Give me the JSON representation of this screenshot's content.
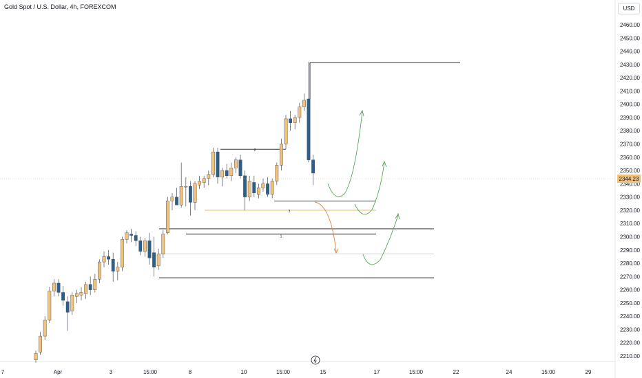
{
  "header": {
    "title": "Gold Spot / U.S. Dollar, 4h, FOREXCOM",
    "currency": "USD"
  },
  "chart_data": {
    "type": "candlestick",
    "symbol": "Gold Spot / U.S. Dollar",
    "interval": "4h",
    "exchange": "FOREXCOM",
    "currency": "USD",
    "last_price": "2344.23",
    "ylim": [
      2205,
      2470
    ],
    "y_ticks": [
      2210,
      2220,
      2230,
      2240,
      2250,
      2260,
      2270,
      2280,
      2290,
      2300,
      2310,
      2320,
      2330,
      2340,
      2350,
      2360,
      2370,
      2380,
      2390,
      2400,
      2410,
      2420,
      2430,
      2440,
      2450,
      2460
    ],
    "x_ticks": [
      "7",
      "Apr",
      "3",
      "15:00",
      "8",
      "10",
      "15:00",
      "15",
      "17",
      "15:00",
      "22",
      "24",
      "15:00",
      "29"
    ],
    "bull_color": "#f0c27b",
    "bear_color": "#2e5f8a",
    "candles": [
      {
        "o": 2207,
        "h": 2214,
        "l": 2205,
        "c": 2212
      },
      {
        "o": 2213,
        "h": 2228,
        "l": 2211,
        "c": 2225
      },
      {
        "o": 2225,
        "h": 2240,
        "l": 2222,
        "c": 2237
      },
      {
        "o": 2237,
        "h": 2262,
        "l": 2235,
        "c": 2259
      },
      {
        "o": 2259,
        "h": 2268,
        "l": 2255,
        "c": 2265
      },
      {
        "o": 2265,
        "h": 2268,
        "l": 2255,
        "c": 2258
      },
      {
        "o": 2258,
        "h": 2263,
        "l": 2248,
        "c": 2252
      },
      {
        "o": 2251,
        "h": 2255,
        "l": 2229,
        "c": 2243
      },
      {
        "o": 2244,
        "h": 2258,
        "l": 2241,
        "c": 2256
      },
      {
        "o": 2255,
        "h": 2260,
        "l": 2250,
        "c": 2257
      },
      {
        "o": 2256,
        "h": 2262,
        "l": 2252,
        "c": 2258
      },
      {
        "o": 2257,
        "h": 2266,
        "l": 2253,
        "c": 2264
      },
      {
        "o": 2264,
        "h": 2270,
        "l": 2256,
        "c": 2260
      },
      {
        "o": 2260,
        "h": 2272,
        "l": 2258,
        "c": 2268
      },
      {
        "o": 2268,
        "h": 2283,
        "l": 2265,
        "c": 2281
      },
      {
        "o": 2281,
        "h": 2289,
        "l": 2277,
        "c": 2285
      },
      {
        "o": 2285,
        "h": 2290,
        "l": 2279,
        "c": 2283
      },
      {
        "o": 2283,
        "h": 2288,
        "l": 2266,
        "c": 2274
      },
      {
        "o": 2274,
        "h": 2281,
        "l": 2267,
        "c": 2277
      },
      {
        "o": 2277,
        "h": 2300,
        "l": 2274,
        "c": 2298
      },
      {
        "o": 2298,
        "h": 2305,
        "l": 2295,
        "c": 2303
      },
      {
        "o": 2302,
        "h": 2306,
        "l": 2296,
        "c": 2301
      },
      {
        "o": 2301,
        "h": 2304,
        "l": 2293,
        "c": 2297
      },
      {
        "o": 2297,
        "h": 2300,
        "l": 2286,
        "c": 2289
      },
      {
        "o": 2289,
        "h": 2299,
        "l": 2285,
        "c": 2297
      },
      {
        "o": 2297,
        "h": 2303,
        "l": 2279,
        "c": 2284
      },
      {
        "o": 2288,
        "h": 2300,
        "l": 2270,
        "c": 2277
      },
      {
        "o": 2278,
        "h": 2291,
        "l": 2275,
        "c": 2287
      },
      {
        "o": 2287,
        "h": 2305,
        "l": 2284,
        "c": 2302
      },
      {
        "o": 2303,
        "h": 2330,
        "l": 2302,
        "c": 2327
      },
      {
        "o": 2327,
        "h": 2333,
        "l": 2320,
        "c": 2330
      },
      {
        "o": 2330,
        "h": 2337,
        "l": 2326,
        "c": 2324
      },
      {
        "o": 2324,
        "h": 2356,
        "l": 2322,
        "c": 2338
      },
      {
        "o": 2338,
        "h": 2345,
        "l": 2323,
        "c": 2338
      },
      {
        "o": 2338,
        "h": 2342,
        "l": 2316,
        "c": 2326
      },
      {
        "o": 2326,
        "h": 2342,
        "l": 2320,
        "c": 2340
      },
      {
        "o": 2339,
        "h": 2346,
        "l": 2336,
        "c": 2342
      },
      {
        "o": 2341,
        "h": 2346,
        "l": 2337,
        "c": 2344
      },
      {
        "o": 2344,
        "h": 2350,
        "l": 2339,
        "c": 2347
      },
      {
        "o": 2347,
        "h": 2367,
        "l": 2345,
        "c": 2364
      },
      {
        "o": 2364,
        "h": 2367,
        "l": 2340,
        "c": 2345
      },
      {
        "o": 2345,
        "h": 2352,
        "l": 2338,
        "c": 2350
      },
      {
        "o": 2350,
        "h": 2355,
        "l": 2344,
        "c": 2346
      },
      {
        "o": 2346,
        "h": 2356,
        "l": 2342,
        "c": 2352
      },
      {
        "o": 2352,
        "h": 2360,
        "l": 2348,
        "c": 2358
      },
      {
        "o": 2358,
        "h": 2362,
        "l": 2344,
        "c": 2346
      },
      {
        "o": 2346,
        "h": 2350,
        "l": 2320,
        "c": 2330
      },
      {
        "o": 2330,
        "h": 2346,
        "l": 2327,
        "c": 2342
      },
      {
        "o": 2341,
        "h": 2346,
        "l": 2330,
        "c": 2333
      },
      {
        "o": 2332,
        "h": 2340,
        "l": 2329,
        "c": 2337
      },
      {
        "o": 2337,
        "h": 2344,
        "l": 2334,
        "c": 2340
      },
      {
        "o": 2340,
        "h": 2345,
        "l": 2330,
        "c": 2332
      },
      {
        "o": 2332,
        "h": 2344,
        "l": 2329,
        "c": 2342
      },
      {
        "o": 2342,
        "h": 2356,
        "l": 2339,
        "c": 2354
      },
      {
        "o": 2354,
        "h": 2374,
        "l": 2350,
        "c": 2370
      },
      {
        "o": 2370,
        "h": 2392,
        "l": 2366,
        "c": 2389
      },
      {
        "o": 2389,
        "h": 2395,
        "l": 2380,
        "c": 2386
      },
      {
        "o": 2386,
        "h": 2392,
        "l": 2381,
        "c": 2390
      },
      {
        "o": 2390,
        "h": 2401,
        "l": 2386,
        "c": 2398
      },
      {
        "o": 2398,
        "h": 2408,
        "l": 2395,
        "c": 2403
      },
      {
        "o": 2404,
        "h": 2432,
        "l": 2356,
        "c": 2358
      },
      {
        "o": 2358,
        "h": 2362,
        "l": 2339,
        "c": 2348
      }
    ],
    "levels": [
      {
        "price": 2431.5,
        "color": "#131722"
      },
      {
        "price": 2366,
        "color": "#131722"
      },
      {
        "price": 2327,
        "color": "#131722"
      },
      {
        "price": 2320,
        "color": "#f2a93b"
      },
      {
        "price": 2306,
        "color": "#131722"
      },
      {
        "price": 2302,
        "color": "#131722"
      },
      {
        "price": 2287,
        "color": "#c8c8c8"
      },
      {
        "price": 2269,
        "color": "#131722"
      }
    ],
    "level_labels": [
      "2",
      "3",
      "1"
    ]
  }
}
